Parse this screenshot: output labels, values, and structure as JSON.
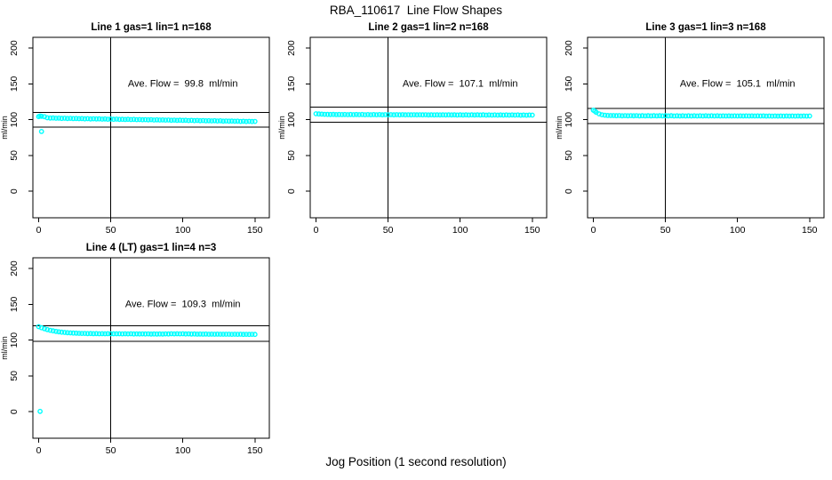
{
  "main_title": "RBA_110617  Line Flow Shapes",
  "x_axis_label": "Jog Position (1 second resolution)",
  "point_color": "#00ffff",
  "line_color": "#000000",
  "chart_data": [
    {
      "type": "scatter",
      "title": "Line 1 gas=1 lin=1 n=168",
      "annotation": "Ave. Flow =  99.8  ml/min",
      "ave_flow_ml_min": 99.8,
      "n": 168,
      "ylabel": "ml/min",
      "xlim": [
        -4,
        160
      ],
      "ylim": [
        -37,
        215
      ],
      "xticks": [
        0,
        50,
        100,
        150
      ],
      "yticks": [
        0,
        50,
        100,
        150,
        200
      ],
      "vline_x": 50,
      "hlines_y": [
        109.8,
        89.8
      ],
      "x_start": 0,
      "x_step": 2,
      "y_values": [
        104.3,
        104.8,
        104.1,
        102.7,
        102.3,
        102.4,
        102.0,
        102.2,
        101.8,
        102.0,
        101.7,
        101.9,
        101.5,
        101.7,
        101.4,
        101.6,
        101.2,
        101.4,
        101.1,
        101.3,
        101.0,
        101.2,
        100.8,
        101.0,
        100.7,
        100.9,
        100.6,
        100.8,
        100.4,
        100.6,
        100.3,
        100.5,
        100.2,
        100.4,
        100.0,
        100.2,
        99.9,
        100.1,
        99.8,
        100.0,
        99.6,
        99.8,
        99.5,
        99.7,
        99.4,
        99.6,
        99.2,
        99.4,
        99.1,
        99.3,
        99.0,
        99.2,
        98.8,
        99.0,
        98.7,
        98.9,
        98.6,
        98.8,
        98.4,
        98.6,
        98.3,
        98.5,
        98.2,
        98.4,
        98.0,
        98.2,
        97.9,
        98.1,
        97.8,
        98.0,
        97.6,
        97.8,
        97.5,
        97.7,
        97.4,
        97.6
      ],
      "outlier_points": [
        [
          1,
          105.2
        ],
        [
          2,
          83.5
        ]
      ]
    },
    {
      "type": "scatter",
      "title": "Line 2 gas=1 lin=2 n=168",
      "annotation": "Ave. Flow =  107.1  ml/min",
      "ave_flow_ml_min": 107.1,
      "n": 168,
      "ylabel": "ml/min",
      "xlim": [
        -4,
        160
      ],
      "ylim": [
        -37,
        215
      ],
      "xticks": [
        0,
        50,
        100,
        150
      ],
      "yticks": [
        0,
        50,
        100,
        150,
        200
      ],
      "vline_x": 50,
      "hlines_y": [
        117.8,
        96.4
      ],
      "x_start": 0,
      "x_step": 2,
      "y_values": [
        108.3,
        108.0,
        107.7,
        107.5,
        107.4,
        107.2,
        107.4,
        107.1,
        107.3,
        107.1,
        107.3,
        107.0,
        107.2,
        107.0,
        107.2,
        107.0,
        107.2,
        106.9,
        107.1,
        106.9,
        107.1,
        106.9,
        107.1,
        106.8,
        107.0,
        106.8,
        107.0,
        106.8,
        107.0,
        106.8,
        107.0,
        106.7,
        106.9,
        106.7,
        106.9,
        106.7,
        106.9,
        106.7,
        106.9,
        106.6,
        106.8,
        106.6,
        106.8,
        106.6,
        106.8,
        106.6,
        106.8,
        106.6,
        106.8,
        106.5,
        106.7,
        106.5,
        106.7,
        106.5,
        106.7,
        106.5,
        106.7,
        106.5,
        106.7,
        106.4,
        106.6,
        106.4,
        106.6,
        106.4,
        106.6,
        106.4,
        106.6,
        106.4,
        106.6,
        106.4,
        106.6,
        106.3,
        106.5,
        106.3,
        106.5,
        106.4
      ],
      "outlier_points": []
    },
    {
      "type": "scatter",
      "title": "Line 3 gas=1 lin=3 n=168",
      "annotation": "Ave. Flow =  105.1  ml/min",
      "ave_flow_ml_min": 105.1,
      "n": 168,
      "ylabel": "ml/min",
      "xlim": [
        -4,
        160
      ],
      "ylim": [
        -37,
        215
      ],
      "xticks": [
        0,
        50,
        100,
        150
      ],
      "yticks": [
        0,
        50,
        100,
        150,
        200
      ],
      "vline_x": 50,
      "hlines_y": [
        115.6,
        94.6
      ],
      "x_start": 0,
      "x_step": 2,
      "y_values": [
        113.2,
        110.4,
        108.1,
        106.9,
        106.3,
        105.9,
        105.7,
        105.8,
        105.5,
        105.7,
        105.4,
        105.6,
        105.4,
        105.6,
        105.4,
        105.6,
        105.3,
        105.5,
        105.3,
        105.5,
        105.3,
        105.5,
        105.3,
        105.5,
        105.3,
        105.5,
        105.3,
        105.5,
        105.2,
        105.4,
        105.2,
        105.4,
        105.2,
        105.4,
        105.2,
        105.4,
        105.2,
        105.4,
        105.2,
        105.4,
        105.2,
        105.4,
        105.2,
        105.4,
        105.1,
        105.3,
        105.1,
        105.3,
        105.1,
        105.3,
        105.1,
        105.3,
        105.1,
        105.3,
        105.1,
        105.3,
        105.1,
        105.3,
        105.1,
        105.3,
        105.0,
        105.2,
        105.0,
        105.2,
        105.0,
        105.2,
        105.0,
        105.2,
        105.0,
        105.2,
        105.0,
        105.2,
        105.0,
        105.2,
        105.0,
        105.2
      ],
      "outlier_points": [
        [
          1,
          112.0
        ]
      ]
    },
    {
      "type": "scatter",
      "title": "Line 4 (LT) gas=1 lin=4 n=3",
      "annotation": "Ave. Flow =  109.3  ml/min",
      "ave_flow_ml_min": 109.3,
      "n": 3,
      "ylabel": "ml/min",
      "xlim": [
        -4,
        160
      ],
      "ylim": [
        -37,
        215
      ],
      "xticks": [
        0,
        50,
        100,
        150
      ],
      "yticks": [
        0,
        50,
        100,
        150,
        200
      ],
      "vline_x": 50,
      "hlines_y": [
        120.2,
        98.4
      ],
      "x_start": 0,
      "x_step": 2,
      "y_values": [
        118.8,
        117.3,
        115.9,
        114.7,
        113.7,
        112.9,
        112.2,
        111.6,
        111.1,
        110.7,
        110.4,
        110.1,
        109.9,
        109.7,
        109.5,
        109.4,
        109.3,
        109.1,
        109.2,
        109.0,
        109.1,
        108.9,
        109.0,
        108.9,
        109.0,
        108.8,
        108.9,
        108.8,
        108.9,
        108.7,
        108.8,
        108.7,
        108.8,
        108.6,
        108.7,
        108.6,
        108.7,
        108.6,
        108.7,
        108.5,
        108.6,
        108.5,
        108.6,
        108.5,
        108.7,
        108.6,
        108.8,
        108.7,
        108.9,
        108.7,
        108.8,
        108.6,
        108.7,
        108.5,
        108.6,
        108.4,
        108.5,
        108.4,
        108.5,
        108.3,
        108.4,
        108.3,
        108.4,
        108.2,
        108.3,
        108.2,
        108.3,
        108.1,
        108.2,
        108.1,
        108.2,
        108.0,
        108.1,
        108.0,
        108.1,
        108.0
      ],
      "outlier_points": [
        [
          1,
          0.5
        ]
      ]
    }
  ]
}
